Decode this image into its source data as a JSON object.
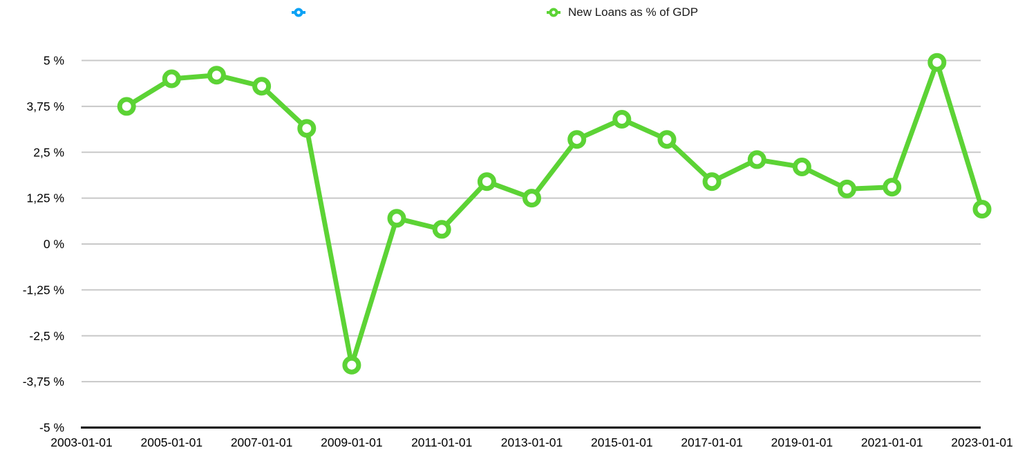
{
  "chart_data": {
    "type": "line",
    "title": "",
    "x": [
      2004,
      2005,
      2006,
      2007,
      2008,
      2009,
      2010,
      2011,
      2012,
      2013,
      2014,
      2015,
      2016,
      2017,
      2018,
      2019,
      2020,
      2021,
      2022,
      2023
    ],
    "series": [
      {
        "name": "",
        "color": "#0ba2f5",
        "values": []
      },
      {
        "name": "New Loans as % of GDP",
        "color": "#5cd335",
        "values": [
          3.75,
          4.5,
          4.6,
          4.3,
          3.15,
          -3.3,
          0.7,
          0.4,
          1.7,
          1.25,
          2.85,
          3.4,
          2.85,
          1.7,
          2.3,
          2.1,
          1.5,
          1.55,
          4.95,
          0.95
        ]
      }
    ],
    "x_axis": {
      "range_years": [
        2003,
        2023
      ],
      "tick_years": [
        2003,
        2005,
        2007,
        2009,
        2011,
        2013,
        2015,
        2017,
        2019,
        2021,
        2023
      ],
      "tick_labels": [
        "2003-01-01",
        "2005-01-01",
        "2007-01-01",
        "2009-01-01",
        "2011-01-01",
        "2013-01-01",
        "2015-01-01",
        "2017-01-01",
        "2019-01-01",
        "2021-01-01",
        "2023-01-01"
      ]
    },
    "y_axis": {
      "range": [
        -5,
        5
      ],
      "unit": "%",
      "decimal_separator": ",",
      "ticks": [
        {
          "value": 5,
          "label": "5 %"
        },
        {
          "value": 3.75,
          "label": "3,75 %"
        },
        {
          "value": 2.5,
          "label": "2,5 %"
        },
        {
          "value": 1.25,
          "label": "1,25 %"
        },
        {
          "value": 0,
          "label": "0 %"
        },
        {
          "value": -1.25,
          "label": "-1,25 %"
        },
        {
          "value": -2.5,
          "label": "-2,5 %"
        },
        {
          "value": -3.75,
          "label": "-3,75 %"
        },
        {
          "value": -5,
          "label": "-5 %"
        }
      ]
    },
    "grid": true,
    "legend_position": "top",
    "marker_style": "open-circle",
    "colors": {
      "gridline": "#c8c8c8",
      "axis": "#000000",
      "text": "#000000",
      "marker_fill": "#ffffff"
    }
  }
}
